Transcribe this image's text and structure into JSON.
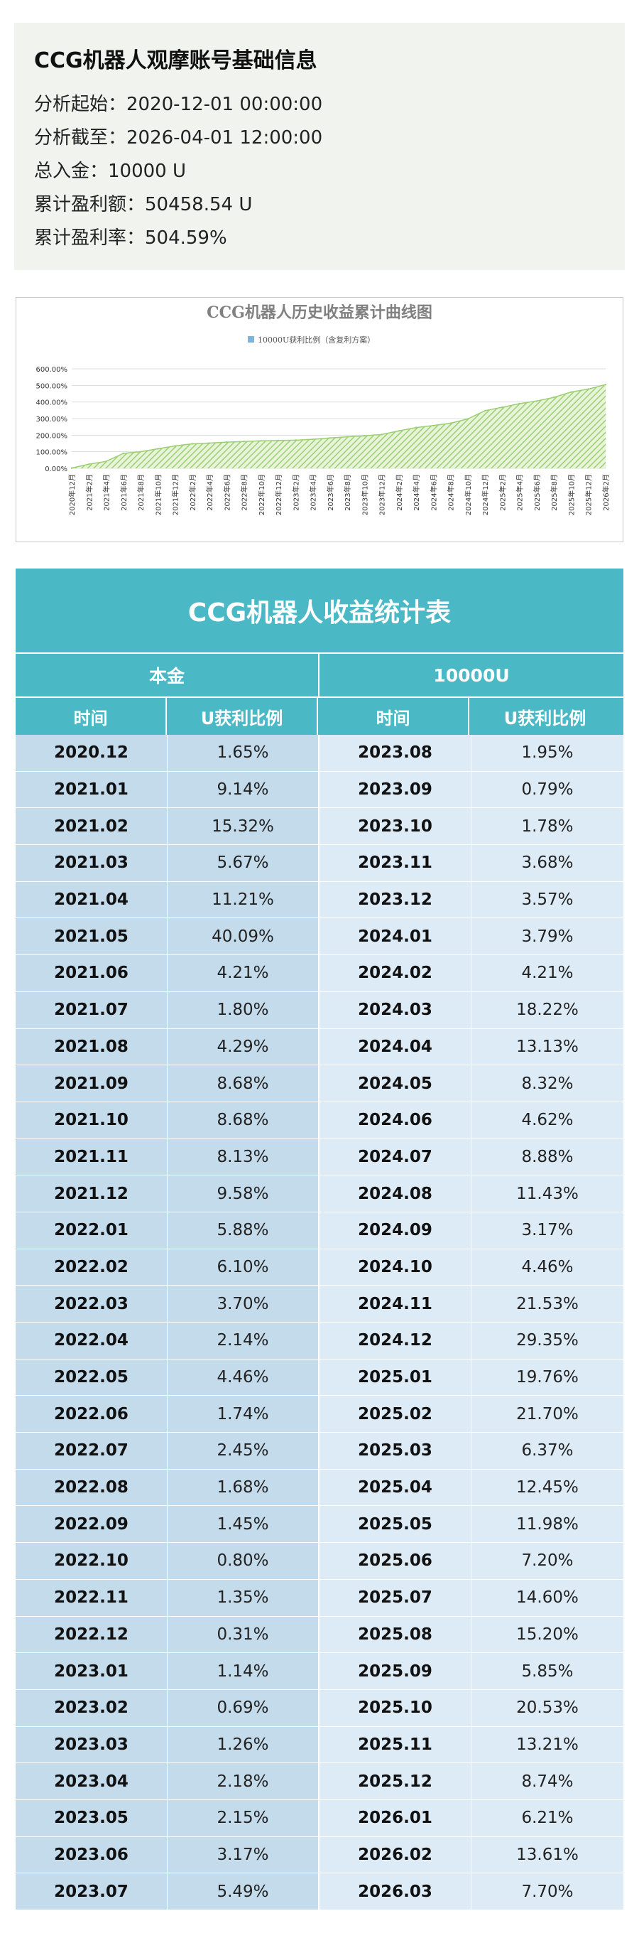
{
  "info": {
    "title": "CCG机器人观摩账号基础信息",
    "rows": [
      "分析起始：2020-12-01 00:00:00",
      "分析截至：2026-04-01 12:00:00",
      "总入金：10000 U",
      "累计盈利额：50458.54 U",
      "累计盈利率：504.59%"
    ]
  },
  "chart_data": {
    "type": "area",
    "title": "CCG机器人历史收益累计曲线图",
    "legend": "10000U获利比例（含复利方案）",
    "legend_position": "top",
    "y_ticks": [
      "600.00%",
      "500.00%",
      "400.00%",
      "300.00%",
      "200.00%",
      "100.00%",
      "0.00%"
    ],
    "ylim": [
      0,
      600
    ],
    "grid": true,
    "colors": {
      "fill": "#9ccf72",
      "stroke": "#7ab4e0"
    },
    "x": [
      "2020年12月",
      "2021年2月",
      "2021年4月",
      "2021年6月",
      "2021年8月",
      "2021年10月",
      "2021年12月",
      "2022年2月",
      "2022年4月",
      "2022年6月",
      "2022年8月",
      "2022年10月",
      "2022年12月",
      "2023年2月",
      "2023年4月",
      "2023年6月",
      "2023年8月",
      "2023年10月",
      "2023年12月",
      "2024年2月",
      "2024年4月",
      "2024年6月",
      "2024年8月",
      "2024年10月",
      "2024年12月",
      "2025年2月",
      "2025年4月",
      "2025年6月",
      "2025年8月",
      "2025年10月",
      "2025年12月",
      "2026年2月"
    ],
    "values": [
      1.65,
      25,
      42,
      90,
      100,
      118,
      135,
      148,
      152,
      158,
      162,
      166,
      168,
      170,
      175,
      183,
      190,
      196,
      204,
      226,
      246,
      258,
      272,
      298,
      348,
      368,
      390,
      406,
      428,
      460,
      478,
      505
    ]
  },
  "table": {
    "title": "CCG机器人收益统计表",
    "header_left": "本金",
    "header_right": "10000U",
    "col_time": "时间",
    "col_ratio": "U获利比例",
    "left_rows": [
      {
        "t": "2020.12",
        "v": "1.65%"
      },
      {
        "t": "2021.01",
        "v": "9.14%"
      },
      {
        "t": "2021.02",
        "v": "15.32%"
      },
      {
        "t": "2021.03",
        "v": "5.67%"
      },
      {
        "t": "2021.04",
        "v": "11.21%"
      },
      {
        "t": "2021.05",
        "v": "40.09%"
      },
      {
        "t": "2021.06",
        "v": "4.21%"
      },
      {
        "t": "2021.07",
        "v": "1.80%"
      },
      {
        "t": "2021.08",
        "v": "4.29%"
      },
      {
        "t": "2021.09",
        "v": "8.68%"
      },
      {
        "t": "2021.10",
        "v": "8.68%"
      },
      {
        "t": "2021.11",
        "v": "8.13%"
      },
      {
        "t": "2021.12",
        "v": "9.58%"
      },
      {
        "t": "2022.01",
        "v": "5.88%"
      },
      {
        "t": "2022.02",
        "v": "6.10%"
      },
      {
        "t": "2022.03",
        "v": "3.70%"
      },
      {
        "t": "2022.04",
        "v": "2.14%"
      },
      {
        "t": "2022.05",
        "v": "4.46%"
      },
      {
        "t": "2022.06",
        "v": "1.74%"
      },
      {
        "t": "2022.07",
        "v": "2.45%"
      },
      {
        "t": "2022.08",
        "v": "1.68%"
      },
      {
        "t": "2022.09",
        "v": "1.45%"
      },
      {
        "t": "2022.10",
        "v": "0.80%"
      },
      {
        "t": "2022.11",
        "v": "1.35%"
      },
      {
        "t": "2022.12",
        "v": "0.31%"
      },
      {
        "t": "2023.01",
        "v": "1.14%"
      },
      {
        "t": "2023.02",
        "v": "0.69%"
      },
      {
        "t": "2023.03",
        "v": "1.26%"
      },
      {
        "t": "2023.04",
        "v": "2.18%"
      },
      {
        "t": "2023.05",
        "v": "2.15%"
      },
      {
        "t": "2023.06",
        "v": "3.17%"
      },
      {
        "t": "2023.07",
        "v": "5.49%"
      }
    ],
    "right_rows": [
      {
        "t": "2023.08",
        "v": "1.95%"
      },
      {
        "t": "2023.09",
        "v": "0.79%"
      },
      {
        "t": "2023.10",
        "v": "1.78%"
      },
      {
        "t": "2023.11",
        "v": "3.68%"
      },
      {
        "t": "2023.12",
        "v": "3.57%"
      },
      {
        "t": "2024.01",
        "v": "3.79%"
      },
      {
        "t": "2024.02",
        "v": "4.21%"
      },
      {
        "t": "2024.03",
        "v": "18.22%"
      },
      {
        "t": "2024.04",
        "v": "13.13%"
      },
      {
        "t": "2024.05",
        "v": "8.32%"
      },
      {
        "t": "2024.06",
        "v": "4.62%"
      },
      {
        "t": "2024.07",
        "v": "8.88%"
      },
      {
        "t": "2024.08",
        "v": "11.43%"
      },
      {
        "t": "2024.09",
        "v": "3.17%"
      },
      {
        "t": "2024.10",
        "v": "4.46%"
      },
      {
        "t": "2024.11",
        "v": "21.53%"
      },
      {
        "t": "2024.12",
        "v": "29.35%"
      },
      {
        "t": "2025.01",
        "v": "19.76%"
      },
      {
        "t": "2025.02",
        "v": "21.70%"
      },
      {
        "t": "2025.03",
        "v": "6.37%"
      },
      {
        "t": "2025.04",
        "v": "12.45%"
      },
      {
        "t": "2025.05",
        "v": "11.98%"
      },
      {
        "t": "2025.06",
        "v": "7.20%"
      },
      {
        "t": "2025.07",
        "v": "14.60%"
      },
      {
        "t": "2025.08",
        "v": "15.20%"
      },
      {
        "t": "2025.09",
        "v": "5.85%"
      },
      {
        "t": "2025.10",
        "v": "20.53%"
      },
      {
        "t": "2025.11",
        "v": "13.21%"
      },
      {
        "t": "2025.12",
        "v": "8.74%"
      },
      {
        "t": "2026.01",
        "v": "6.21%"
      },
      {
        "t": "2026.02",
        "v": "13.61%"
      },
      {
        "t": "2026.03",
        "v": "7.70%"
      }
    ]
  }
}
